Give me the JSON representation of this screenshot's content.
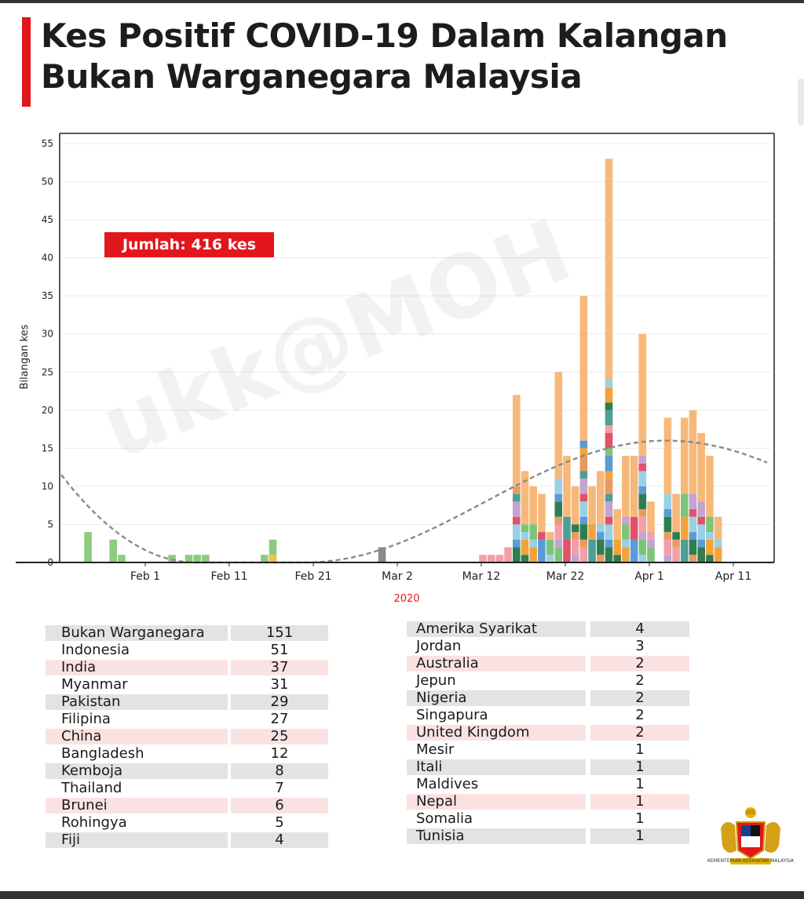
{
  "title": "Kes Positif COVID-19 Dalam Kalangan Bukan Warganegara Malaysia",
  "total_label": "Jumlah: 416 kes",
  "watermark": "ukk@MOH",
  "logo_text": "KEMENTERIAN KESIHATAN MALAYSIA",
  "colors": {
    "accent_red": "#e3161c",
    "bar_orange": "#f6b97a",
    "bar_green": "#8ccc7e",
    "trend": "#888888"
  },
  "chart_data": {
    "type": "bar",
    "stacked": true,
    "title": "",
    "xlabel": "2020",
    "ylabel": "Bilangan kes",
    "ylim": [
      0,
      55
    ],
    "yticks": [
      0,
      5,
      10,
      15,
      20,
      25,
      30,
      35,
      40,
      45,
      50,
      55
    ],
    "x_tick_labels": [
      "Feb 1",
      "Feb 11",
      "Feb 21",
      "Mar 2",
      "Mar 12",
      "Mar 22",
      "Apr 1",
      "Apr 11"
    ],
    "x_range": [
      "2020-01-22",
      "2020-04-12"
    ],
    "annotation": "Jumlah: 416 kes",
    "trend_line": "dashed",
    "daily_totals": [
      {
        "date": "2020-01-25",
        "value": 4
      },
      {
        "date": "2020-01-28",
        "value": 3
      },
      {
        "date": "2020-01-29",
        "value": 1
      },
      {
        "date": "2020-02-04",
        "value": 1
      },
      {
        "date": "2020-02-06",
        "value": 1
      },
      {
        "date": "2020-02-07",
        "value": 1
      },
      {
        "date": "2020-02-08",
        "value": 1
      },
      {
        "date": "2020-02-15",
        "value": 1
      },
      {
        "date": "2020-02-16",
        "value": 3
      },
      {
        "date": "2020-02-29",
        "value": 2
      },
      {
        "date": "2020-03-12",
        "value": 1
      },
      {
        "date": "2020-03-13",
        "value": 1
      },
      {
        "date": "2020-03-14",
        "value": 1
      },
      {
        "date": "2020-03-15",
        "value": 2
      },
      {
        "date": "2020-03-16",
        "value": 22
      },
      {
        "date": "2020-03-17",
        "value": 12
      },
      {
        "date": "2020-03-18",
        "value": 10
      },
      {
        "date": "2020-03-19",
        "value": 9
      },
      {
        "date": "2020-03-20",
        "value": 4
      },
      {
        "date": "2020-03-21",
        "value": 25
      },
      {
        "date": "2020-03-22",
        "value": 14
      },
      {
        "date": "2020-03-23",
        "value": 10
      },
      {
        "date": "2020-03-24",
        "value": 35
      },
      {
        "date": "2020-03-25",
        "value": 10
      },
      {
        "date": "2020-03-26",
        "value": 12
      },
      {
        "date": "2020-03-27",
        "value": 53
      },
      {
        "date": "2020-03-28",
        "value": 7
      },
      {
        "date": "2020-03-29",
        "value": 14
      },
      {
        "date": "2020-03-30",
        "value": 14
      },
      {
        "date": "2020-03-31",
        "value": 30
      },
      {
        "date": "2020-04-01",
        "value": 8
      },
      {
        "date": "2020-04-03",
        "value": 19
      },
      {
        "date": "2020-04-04",
        "value": 9
      },
      {
        "date": "2020-04-05",
        "value": 19
      },
      {
        "date": "2020-04-06",
        "value": 20
      },
      {
        "date": "2020-04-07",
        "value": 17
      },
      {
        "date": "2020-04-08",
        "value": 14
      },
      {
        "date": "2020-04-09",
        "value": 6
      }
    ]
  },
  "table_left": [
    {
      "name": "Bukan Warganegara",
      "value": "151",
      "bg": "#e3e3e3"
    },
    {
      "name": "Indonesia",
      "value": "51",
      "bg": ""
    },
    {
      "name": "India",
      "value": "37",
      "bg": "#fbe2e2"
    },
    {
      "name": "Myanmar",
      "value": "31",
      "bg": ""
    },
    {
      "name": "Pakistan",
      "value": "29",
      "bg": "#e3e3e3"
    },
    {
      "name": "Filipina",
      "value": "27",
      "bg": ""
    },
    {
      "name": "China",
      "value": "25",
      "bg": "#fbe2e2"
    },
    {
      "name": "Bangladesh",
      "value": "12",
      "bg": ""
    },
    {
      "name": "Kemboja",
      "value": "8",
      "bg": "#e3e3e3"
    },
    {
      "name": "Thailand",
      "value": "7",
      "bg": ""
    },
    {
      "name": "Brunei",
      "value": "6",
      "bg": "#fbe2e2"
    },
    {
      "name": "Rohingya",
      "value": "5",
      "bg": ""
    },
    {
      "name": "Fiji",
      "value": "4",
      "bg": "#e3e3e3"
    }
  ],
  "table_right": [
    {
      "name": "Amerika Syarikat",
      "value": "4",
      "bg": "#e3e3e3"
    },
    {
      "name": "Jordan",
      "value": "3",
      "bg": ""
    },
    {
      "name": "Australia",
      "value": "2",
      "bg": "#fbe2e2"
    },
    {
      "name": "Jepun",
      "value": "2",
      "bg": ""
    },
    {
      "name": "Nigeria",
      "value": "2",
      "bg": "#e3e3e3"
    },
    {
      "name": "Singapura",
      "value": "2",
      "bg": ""
    },
    {
      "name": "United Kingdom",
      "value": "2",
      "bg": "#fbe2e2"
    },
    {
      "name": "Mesir",
      "value": "1",
      "bg": ""
    },
    {
      "name": "Itali",
      "value": "1",
      "bg": "#e3e3e3"
    },
    {
      "name": "Maldives",
      "value": "1",
      "bg": ""
    },
    {
      "name": "Nepal",
      "value": "1",
      "bg": "#fbe2e2"
    },
    {
      "name": "Somalia",
      "value": "1",
      "bg": ""
    },
    {
      "name": "Tunisia",
      "value": "1",
      "bg": "#e3e3e3"
    }
  ]
}
